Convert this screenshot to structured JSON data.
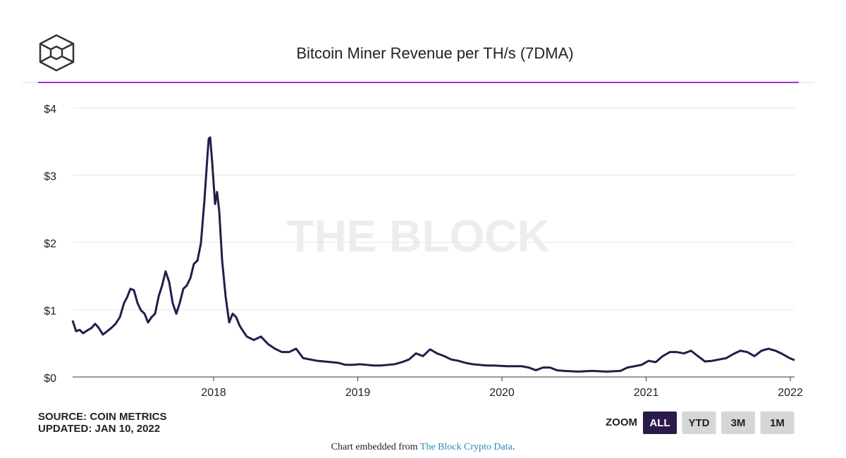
{
  "chart_data": {
    "type": "line",
    "title": "Bitcoin Miner Revenue per TH/s (7DMA)",
    "watermark": "THE BLOCK",
    "source": "SOURCE: COIN METRICS",
    "updated": "UPDATED: JAN 10, 2022",
    "zoom": {
      "label": "ZOOM",
      "buttons": [
        "ALL",
        "YTD",
        "3M",
        "1M"
      ],
      "active": "ALL"
    },
    "footer": {
      "prefix": "Chart embedded from",
      "link": "The Block Crypto Data",
      "suffix": "."
    },
    "color": "#2a1a4a",
    "grid": true,
    "xlim": [
      2017.022,
      2022.029
    ],
    "xticks": [
      2018,
      2019,
      2020,
      2021,
      2022
    ],
    "ylim": [
      0,
      4
    ],
    "yticks": [
      {
        "value": 0,
        "label": "$0"
      },
      {
        "value": 1,
        "label": "$1"
      },
      {
        "value": 2,
        "label": "$2"
      },
      {
        "value": 3,
        "label": "$3"
      },
      {
        "value": 4,
        "label": "$4"
      }
    ],
    "x": [
      2017.022,
      2017.046,
      2017.071,
      2017.095,
      2017.13,
      2017.154,
      2017.178,
      2017.203,
      2017.232,
      2017.262,
      2017.291,
      2017.32,
      2017.35,
      2017.379,
      2017.399,
      2017.423,
      2017.447,
      2017.472,
      2017.496,
      2017.521,
      2017.545,
      2017.57,
      2017.594,
      2017.619,
      2017.643,
      2017.667,
      2017.692,
      2017.716,
      2017.741,
      2017.765,
      2017.79,
      2017.814,
      2017.839,
      2017.863,
      2017.888,
      2017.912,
      2017.936,
      2017.956,
      2017.966,
      2017.976,
      2017.99,
      2018.01,
      2018.024,
      2018.039,
      2018.059,
      2018.083,
      2018.108,
      2018.132,
      2018.156,
      2018.181,
      2018.205,
      2018.23,
      2018.279,
      2018.328,
      2018.377,
      2018.425,
      2018.474,
      2018.523,
      2018.572,
      2018.621,
      2018.67,
      2018.719,
      2018.768,
      2018.817,
      2018.866,
      2018.914,
      2018.963,
      2019.012,
      2019.061,
      2019.11,
      2019.159,
      2019.208,
      2019.257,
      2019.306,
      2019.355,
      2019.403,
      2019.452,
      2019.501,
      2019.55,
      2019.599,
      2019.648,
      2019.697,
      2019.746,
      2019.795,
      2019.844,
      2019.892,
      2019.941,
      2020.039,
      2020.137,
      2020.186,
      2020.235,
      2020.284,
      2020.333,
      2020.381,
      2020.43,
      2020.528,
      2020.626,
      2020.724,
      2020.822,
      2020.87,
      2020.919,
      2020.968,
      2021.017,
      2021.066,
      2021.115,
      2021.164,
      2021.213,
      2021.262,
      2021.311,
      2021.359,
      2021.408,
      2021.457,
      2021.506,
      2021.555,
      2021.604,
      2021.653,
      2021.702,
      2021.751,
      2021.8,
      2021.848,
      2021.897,
      2021.946,
      2021.995,
      2022.029
    ],
    "values": [
      0.84,
      0.68,
      0.7,
      0.65,
      0.7,
      0.73,
      0.79,
      0.73,
      0.63,
      0.68,
      0.73,
      0.79,
      0.89,
      1.1,
      1.18,
      1.31,
      1.29,
      1.1,
      0.99,
      0.94,
      0.81,
      0.89,
      0.94,
      1.2,
      1.36,
      1.57,
      1.41,
      1.1,
      0.94,
      1.1,
      1.31,
      1.36,
      1.47,
      1.68,
      1.73,
      1.99,
      2.62,
      3.25,
      3.54,
      3.56,
      3.19,
      2.57,
      2.75,
      2.46,
      1.73,
      1.2,
      0.81,
      0.94,
      0.89,
      0.76,
      0.68,
      0.6,
      0.55,
      0.6,
      0.49,
      0.42,
      0.37,
      0.37,
      0.42,
      0.28,
      0.26,
      0.24,
      0.23,
      0.22,
      0.21,
      0.18,
      0.18,
      0.19,
      0.18,
      0.17,
      0.17,
      0.18,
      0.19,
      0.22,
      0.26,
      0.35,
      0.31,
      0.41,
      0.35,
      0.31,
      0.26,
      0.24,
      0.21,
      0.19,
      0.18,
      0.17,
      0.17,
      0.16,
      0.16,
      0.14,
      0.1,
      0.14,
      0.14,
      0.1,
      0.09,
      0.08,
      0.09,
      0.08,
      0.09,
      0.14,
      0.16,
      0.18,
      0.24,
      0.22,
      0.31,
      0.37,
      0.37,
      0.35,
      0.39,
      0.31,
      0.23,
      0.24,
      0.26,
      0.28,
      0.34,
      0.39,
      0.37,
      0.31,
      0.39,
      0.42,
      0.39,
      0.34,
      0.28,
      0.25
    ]
  }
}
